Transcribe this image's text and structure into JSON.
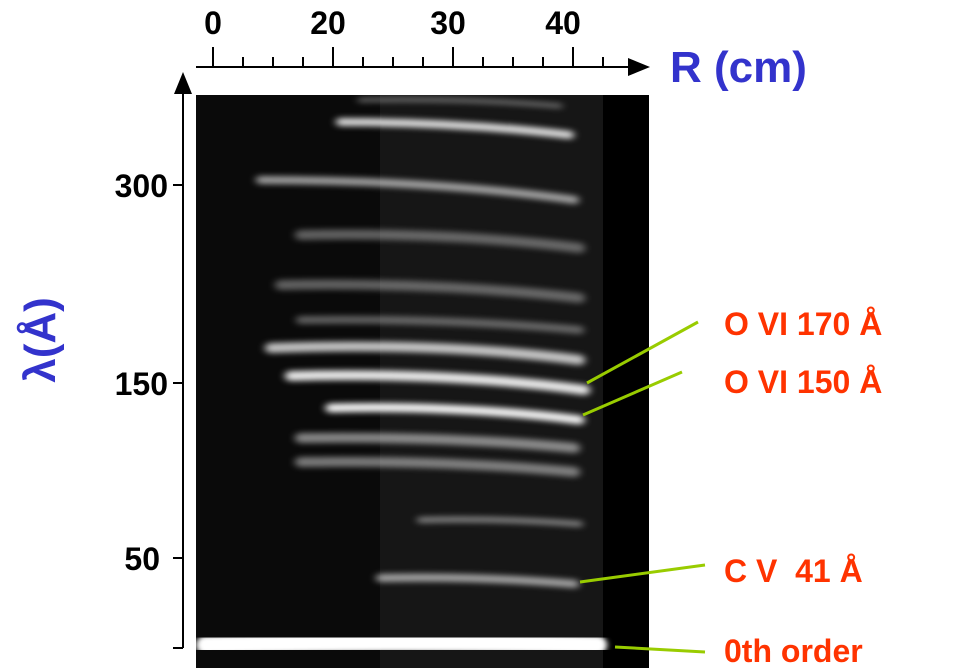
{
  "figure": {
    "x_axis": {
      "title": "R (cm)",
      "tick_labels": [
        "0",
        "20",
        "30",
        "40"
      ]
    },
    "y_axis": {
      "title": "λ(Å)",
      "tick_labels": [
        "300",
        "150",
        "50"
      ]
    },
    "annotations": [
      "O VI 170 Å",
      "O VI 150 Å",
      "C V  41 Å",
      "0th order"
    ]
  }
}
